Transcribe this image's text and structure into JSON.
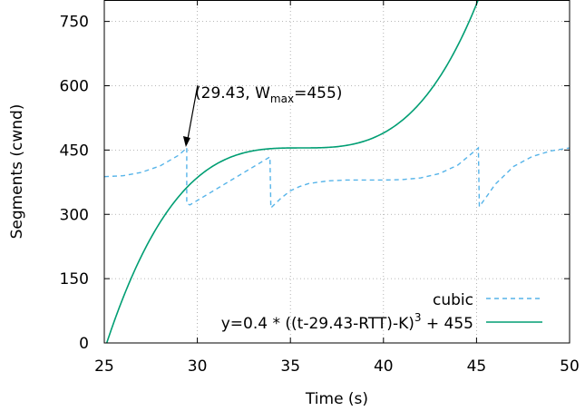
{
  "chart_data": {
    "type": "line",
    "title": "",
    "xlabel": "Time (s)",
    "ylabel": "Segments (cwnd)",
    "xlim": [
      25,
      50
    ],
    "ylim": [
      0,
      800
    ],
    "xticks": [
      25,
      30,
      35,
      40,
      45,
      50
    ],
    "yticks": [
      0,
      150,
      300,
      450,
      600,
      750
    ],
    "grid": true,
    "legend_position": "bottom-right",
    "annotation": {
      "text_prefix": "(29.43, W",
      "text_sub": "max",
      "text_suffix": "=455)",
      "x": 29.43,
      "y": 455
    },
    "series": [
      {
        "name": "cubic",
        "style": "dashed",
        "color": "#56b4e9",
        "points": [
          [
            25,
            388
          ],
          [
            26,
            390
          ],
          [
            27,
            398
          ],
          [
            28,
            413
          ],
          [
            29,
            438
          ],
          [
            29.43,
            455
          ],
          [
            29.43,
            325
          ],
          [
            29.6,
            322
          ],
          [
            33.9,
            434
          ],
          [
            33.95,
            315
          ],
          [
            34.5,
            338
          ],
          [
            35.0,
            355
          ],
          [
            35.5,
            365
          ],
          [
            36,
            372
          ],
          [
            37,
            378
          ],
          [
            38,
            380
          ],
          [
            39,
            380
          ],
          [
            40,
            380
          ],
          [
            41,
            381
          ],
          [
            42,
            385
          ],
          [
            43,
            395
          ],
          [
            44,
            415
          ],
          [
            45.1,
            455
          ],
          [
            45.15,
            318
          ],
          [
            45.6,
            345
          ],
          [
            46,
            370
          ],
          [
            47,
            412
          ],
          [
            48,
            435
          ],
          [
            49,
            448
          ],
          [
            50,
            455
          ]
        ]
      },
      {
        "name_prefix": "y=0.4 * ((t-29.43-RTT)-K)",
        "name_sup": "3",
        "name_suffix": " + 455",
        "style": "solid",
        "color": "#009e73",
        "formula": {
          "c": 0.4,
          "t0": 29.43,
          "K": 6.14,
          "wmax": 455
        }
      }
    ]
  }
}
